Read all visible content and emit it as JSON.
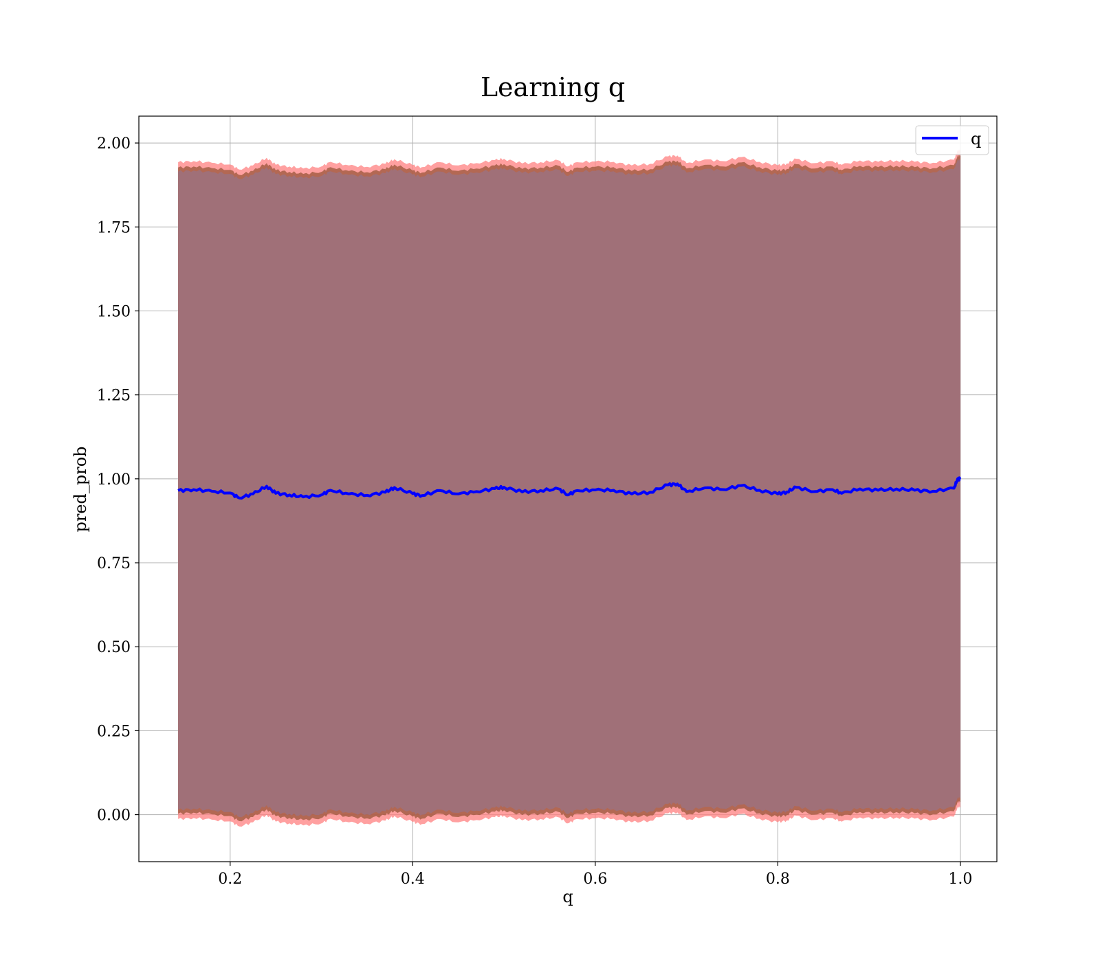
{
  "chart_data": {
    "type": "line",
    "title": "Learning q",
    "xlabel": "q",
    "ylabel": "pred_prob",
    "xlim": [
      0.1,
      1.04
    ],
    "ylim": [
      -0.14,
      2.08
    ],
    "xticks": [
      0.2,
      0.4,
      0.6,
      0.8,
      1.0
    ],
    "xtick_labels": [
      "0.2",
      "0.4",
      "0.6",
      "0.8",
      "1.0"
    ],
    "yticks": [
      0.0,
      0.25,
      0.5,
      0.75,
      1.0,
      1.25,
      1.5,
      1.75,
      2.0
    ],
    "ytick_labels": [
      "0.00",
      "0.25",
      "0.50",
      "0.75",
      "1.00",
      "1.25",
      "1.50",
      "1.75",
      "2.00"
    ],
    "grid": true,
    "legend": {
      "placement": "top-right",
      "entries": [
        "q"
      ]
    },
    "series": [
      {
        "name": "q",
        "color": "#0000ff",
        "x": [
          0.143,
          0.16,
          0.18,
          0.2,
          0.21,
          0.225,
          0.24,
          0.25,
          0.265,
          0.28,
          0.3,
          0.31,
          0.33,
          0.35,
          0.37,
          0.38,
          0.4,
          0.41,
          0.43,
          0.45,
          0.47,
          0.49,
          0.5,
          0.52,
          0.54,
          0.56,
          0.57,
          0.58,
          0.6,
          0.62,
          0.64,
          0.66,
          0.68,
          0.69,
          0.7,
          0.72,
          0.74,
          0.76,
          0.78,
          0.8,
          0.81,
          0.82,
          0.84,
          0.86,
          0.87,
          0.89,
          0.91,
          0.93,
          0.95,
          0.97,
          0.993,
          0.997,
          1.0
        ],
        "y": [
          0.965,
          0.968,
          0.963,
          0.958,
          0.943,
          0.955,
          0.978,
          0.957,
          0.952,
          0.946,
          0.952,
          0.966,
          0.955,
          0.951,
          0.96,
          0.974,
          0.956,
          0.95,
          0.965,
          0.955,
          0.962,
          0.971,
          0.975,
          0.961,
          0.965,
          0.97,
          0.952,
          0.965,
          0.967,
          0.966,
          0.955,
          0.96,
          0.982,
          0.985,
          0.962,
          0.973,
          0.968,
          0.98,
          0.966,
          0.955,
          0.961,
          0.975,
          0.962,
          0.968,
          0.957,
          0.97,
          0.966,
          0.97,
          0.966,
          0.963,
          0.972,
          1.0,
          1.0
        ]
      }
    ],
    "bands": [
      {
        "description": "outer",
        "color": "#ff8080"
      },
      {
        "description": "middle",
        "color": "#a05a40"
      },
      {
        "description": "inner",
        "color": "#a07078"
      }
    ]
  }
}
